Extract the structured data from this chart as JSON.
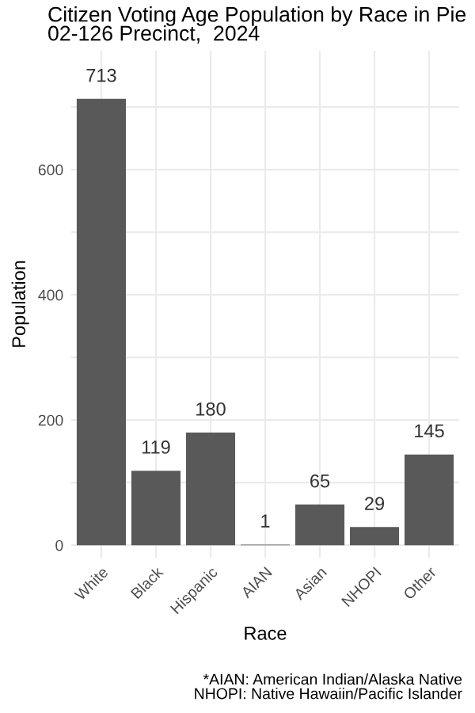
{
  "chart_data": {
    "type": "bar",
    "title": "Citizen Voting Age Population by Race in Pie\n02-126 Precinct,  2024",
    "xlabel": "Race",
    "ylabel": "Population",
    "categories": [
      "White",
      "Black",
      "Hispanic",
      "AIAN",
      "Asian",
      "NHOPI",
      "Other"
    ],
    "values": [
      713,
      119,
      180,
      1,
      65,
      29,
      145
    ],
    "color": "#595959",
    "data_labels": true,
    "ylim": [
      -20,
      790
    ],
    "yticks": [
      0,
      {
        "value": 100,
        "label": null
      },
      200,
      {
        "value": 300,
        "label": null
      },
      400,
      {
        "value": 500,
        "label": null
      },
      600,
      {
        "value": 700,
        "label": null
      }
    ],
    "grid": true,
    "annotations": [
      "*AIAN: American Indian/Alaska Native\nNHOPI: Native Hawaiin/Pacific Islander"
    ]
  }
}
